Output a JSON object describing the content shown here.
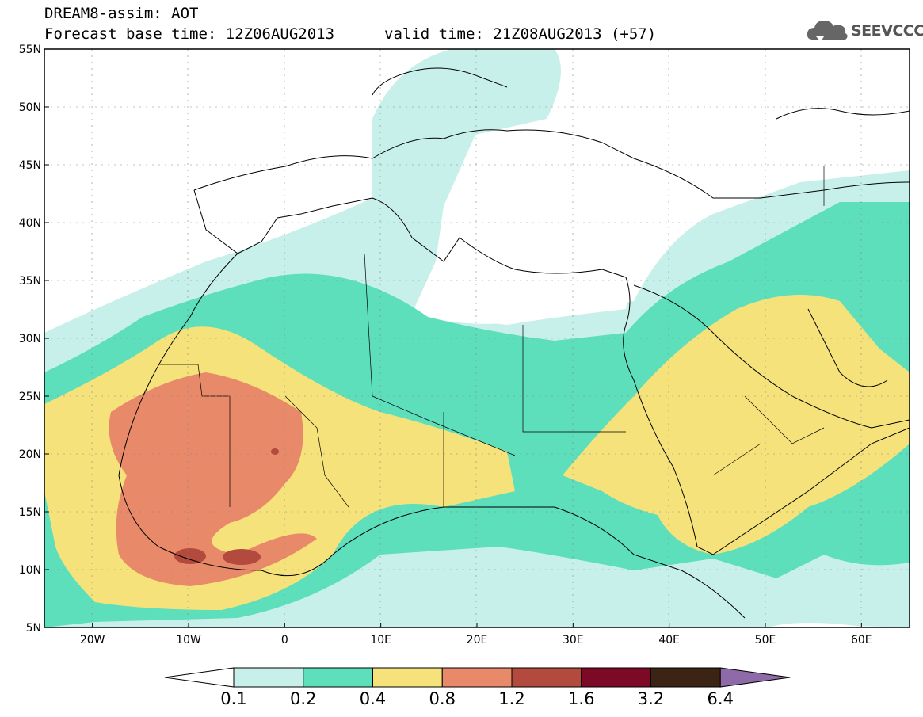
{
  "title": {
    "line1": "DREAM8-assim: AOT",
    "line2": "Forecast base time: 12Z06AUG2013",
    "valid": "valid time: 21Z08AUG2013 (+57)"
  },
  "logo": {
    "text": "SEEVCCC",
    "icon": "cloud-logo-icon"
  },
  "map": {
    "lat_labels": [
      "55N",
      "50N",
      "45N",
      "40N",
      "35N",
      "30N",
      "25N",
      "20N",
      "15N",
      "10N",
      "5N"
    ],
    "lon_labels": [
      "20W",
      "10W",
      "0",
      "10E",
      "20E",
      "30E",
      "40E",
      "50E",
      "60E"
    ],
    "extent": {
      "lon": [
        -25,
        65
      ],
      "lat": [
        5,
        55
      ]
    }
  },
  "colorbar": {
    "labels": [
      "0.1",
      "0.2",
      "0.4",
      "0.8",
      "1.2",
      "1.6",
      "3.2",
      "6.4"
    ],
    "colors": [
      "#ffffff",
      "#c8f0ea",
      "#5ddfbc",
      "#f5e27a",
      "#e8896a",
      "#b24b3e",
      "#7c0a26",
      "#3c2414",
      "#8f6aa8"
    ]
  }
}
